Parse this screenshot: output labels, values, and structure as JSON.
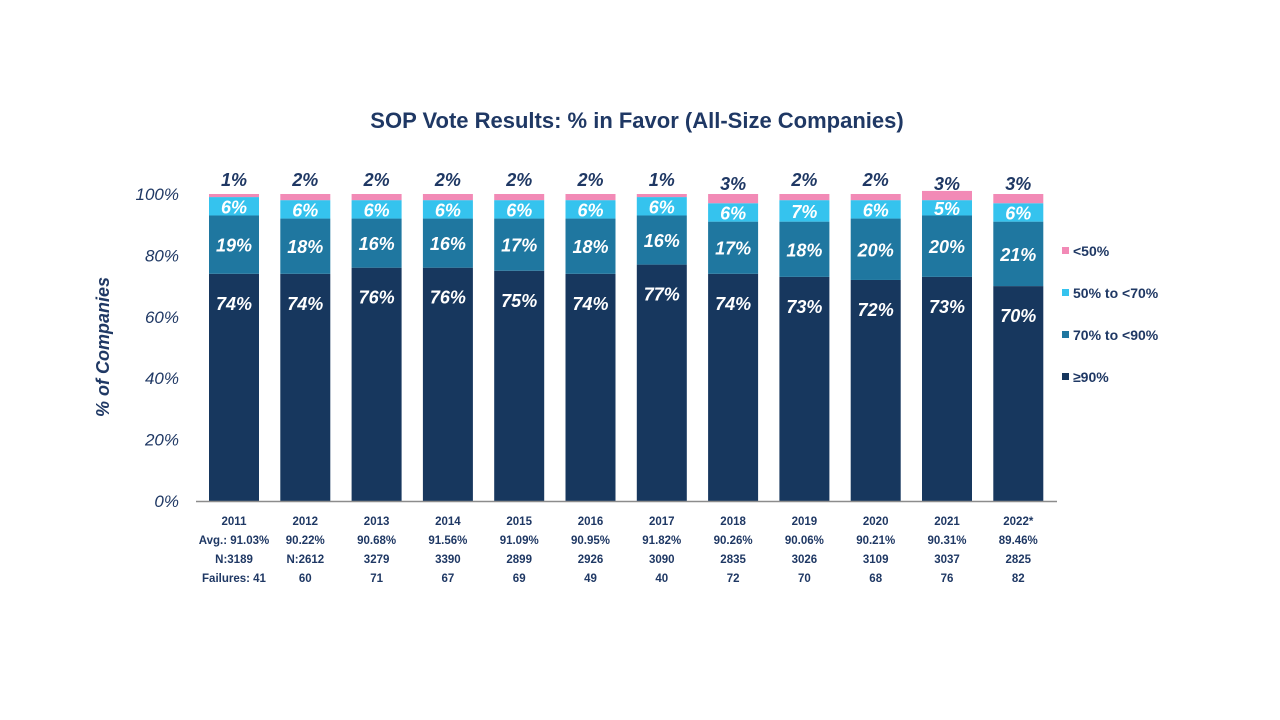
{
  "chart_data": {
    "type": "bar",
    "stacked": true,
    "title": "SOP Vote Results: % in Favor (All-Size Companies)",
    "ylabel": "% of Companies",
    "ylim": [
      0,
      100
    ],
    "yticks": [
      "0%",
      "20%",
      "40%",
      "60%",
      "80%",
      "100%"
    ],
    "grid": false,
    "legend_position": "right",
    "categories": [
      "2011",
      "2012",
      "2013",
      "2014",
      "2015",
      "2016",
      "2017",
      "2018",
      "2019",
      "2020",
      "2021",
      "2022*"
    ],
    "category_info": [
      [
        "2011",
        "Avg.: 91.03%",
        "N:3189",
        "Failures: 41"
      ],
      [
        "2012",
        "90.22%",
        "N:2612",
        "60"
      ],
      [
        "2013",
        "90.68%",
        "3279",
        "71"
      ],
      [
        "2014",
        "91.56%",
        "3390",
        "67"
      ],
      [
        "2015",
        "91.09%",
        "2899",
        "69"
      ],
      [
        "2016",
        "90.95%",
        "2926",
        "49"
      ],
      [
        "2017",
        "91.82%",
        "3090",
        "40"
      ],
      [
        "2018",
        "90.26%",
        "2835",
        "72"
      ],
      [
        "2019",
        "90.06%",
        "3026",
        "70"
      ],
      [
        "2020",
        "90.21%",
        "3109",
        "68"
      ],
      [
        "2021",
        "90.31%",
        "3037",
        "76"
      ],
      [
        "2022*",
        "89.46%",
        "2825",
        "82"
      ]
    ],
    "series": [
      {
        "name": "≥90%",
        "color": "#17375e",
        "values": [
          74,
          74,
          76,
          76,
          75,
          74,
          77,
          74,
          73,
          72,
          73,
          70
        ]
      },
      {
        "name": "70% to <90%",
        "color": "#1f77a0",
        "values": [
          19,
          18,
          16,
          16,
          17,
          18,
          16,
          17,
          18,
          20,
          20,
          21
        ]
      },
      {
        "name": "50% to <70%",
        "color": "#35c3ee",
        "values": [
          6,
          6,
          6,
          6,
          6,
          6,
          6,
          6,
          7,
          6,
          5,
          6
        ]
      },
      {
        "name": "<50%",
        "color": "#f28ab6",
        "values": [
          1,
          2,
          2,
          2,
          2,
          2,
          1,
          3,
          2,
          2,
          3,
          3
        ]
      }
    ],
    "legend_order": [
      "<50%",
      "50% to <70%",
      "70% to <90%",
      "≥90%"
    ]
  }
}
